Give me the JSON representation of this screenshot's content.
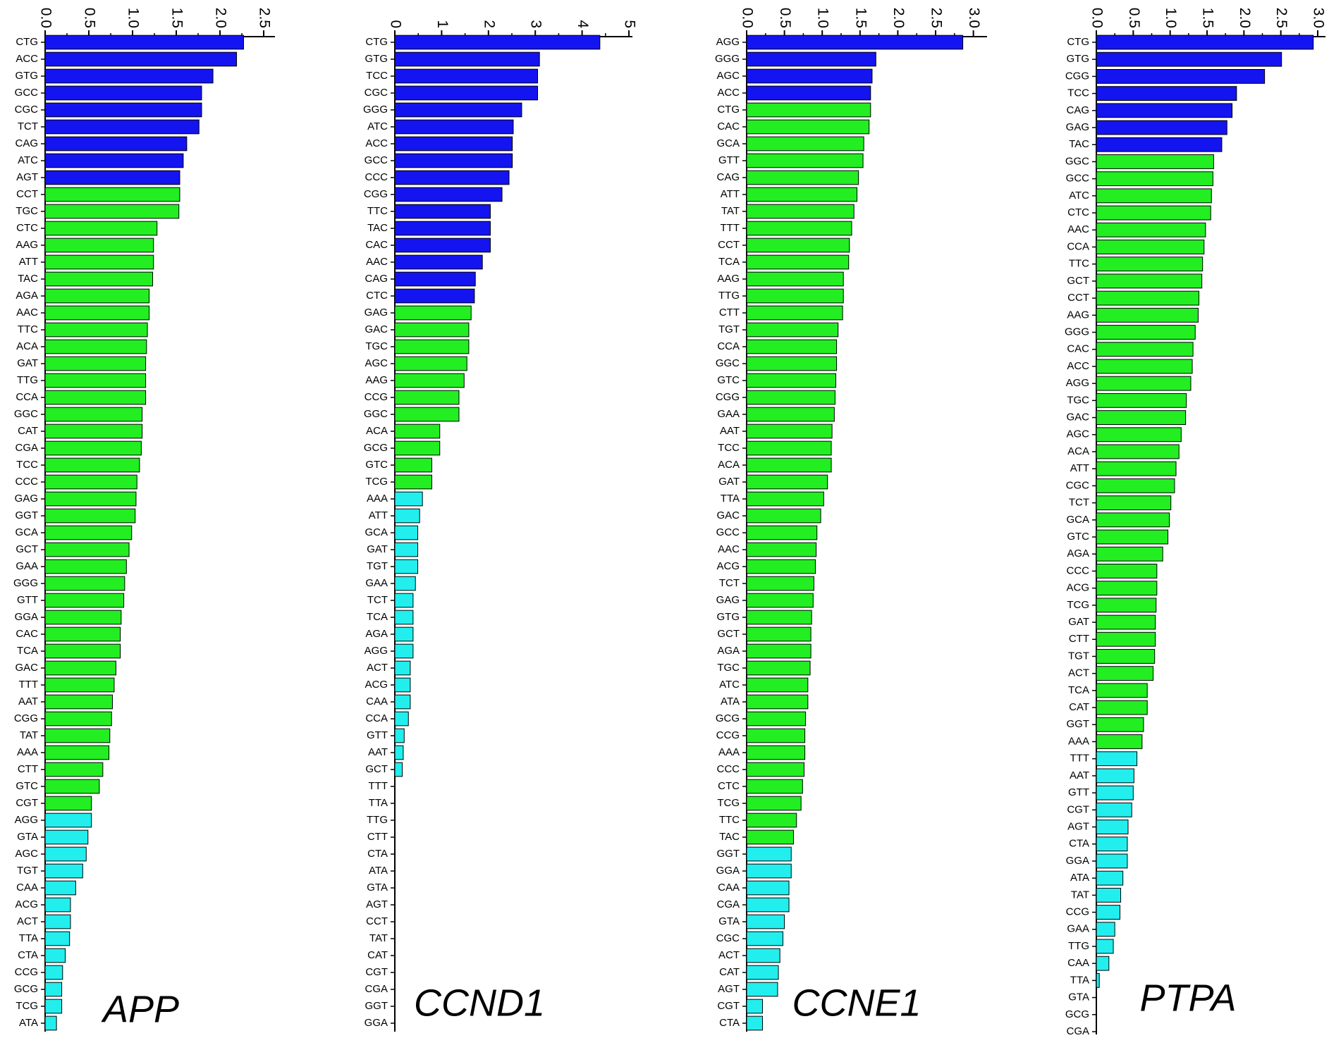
{
  "chart_data": [
    {
      "type": "bar",
      "orientation": "horizontal",
      "title": "APP",
      "xlim": [
        0,
        2.5
      ],
      "ticks": [
        "0.0",
        "0.5",
        "1.0",
        "1.5",
        "2.0",
        "2.5"
      ],
      "categories": [
        "CTG",
        "ACC",
        "GTG",
        "GCC",
        "CGC",
        "TCT",
        "CAG",
        "ATC",
        "AGT",
        "CCT",
        "TGC",
        "CTC",
        "AAG",
        "ATT",
        "TAC",
        "AGA",
        "AAC",
        "TTC",
        "ACA",
        "GAT",
        "TTG",
        "CCA",
        "GGC",
        "CAT",
        "CGA",
        "TCC",
        "CCC",
        "GAG",
        "GGT",
        "GCA",
        "GCT",
        "GAA",
        "GGG",
        "GTT",
        "GGA",
        "CAC",
        "TCA",
        "GAC",
        "TTT",
        "AAT",
        "CGG",
        "TAT",
        "AAA",
        "CTT",
        "GTC",
        "CGT",
        "AGG",
        "GTA",
        "AGC",
        "TGT",
        "CAA",
        "ACG",
        "ACT",
        "TTA",
        "CTA",
        "CCG",
        "GCG",
        "TCG",
        "ATA"
      ],
      "values": [
        2.27,
        2.19,
        1.92,
        1.79,
        1.79,
        1.76,
        1.62,
        1.58,
        1.54,
        1.54,
        1.53,
        1.28,
        1.24,
        1.24,
        1.23,
        1.19,
        1.19,
        1.17,
        1.16,
        1.15,
        1.15,
        1.15,
        1.11,
        1.11,
        1.1,
        1.08,
        1.05,
        1.04,
        1.03,
        0.99,
        0.96,
        0.93,
        0.91,
        0.9,
        0.87,
        0.86,
        0.86,
        0.81,
        0.79,
        0.77,
        0.76,
        0.74,
        0.73,
        0.66,
        0.62,
        0.53,
        0.53,
        0.49,
        0.47,
        0.43,
        0.35,
        0.29,
        0.29,
        0.28,
        0.23,
        0.2,
        0.19,
        0.19,
        0.13
      ],
      "colors": [
        "#1414f0",
        "#1414f0",
        "#1414f0",
        "#1414f0",
        "#1414f0",
        "#1414f0",
        "#1414f0",
        "#1414f0",
        "#1414f0",
        "#22ee22",
        "#22ee22",
        "#22ee22",
        "#22ee22",
        "#22ee22",
        "#22ee22",
        "#22ee22",
        "#22ee22",
        "#22ee22",
        "#22ee22",
        "#22ee22",
        "#22ee22",
        "#22ee22",
        "#22ee22",
        "#22ee22",
        "#22ee22",
        "#22ee22",
        "#22ee22",
        "#22ee22",
        "#22ee22",
        "#22ee22",
        "#22ee22",
        "#22ee22",
        "#22ee22",
        "#22ee22",
        "#22ee22",
        "#22ee22",
        "#22ee22",
        "#22ee22",
        "#22ee22",
        "#22ee22",
        "#22ee22",
        "#22ee22",
        "#22ee22",
        "#22ee22",
        "#22ee22",
        "#22ee22",
        "#22eeee",
        "#22eeee",
        "#22eeee",
        "#22eeee",
        "#22eeee",
        "#22eeee",
        "#22eeee",
        "#22eeee",
        "#22eeee",
        "#22eeee",
        "#22eeee",
        "#22eeee",
        "#22eeee"
      ]
    },
    {
      "type": "bar",
      "orientation": "horizontal",
      "title": "CCND1",
      "xlim": [
        0,
        5
      ],
      "ticks": [
        "0",
        "1",
        "2",
        "3",
        "4",
        "5"
      ],
      "categories": [
        "CTG",
        "GTG",
        "TCC",
        "CGC",
        "GGG",
        "ATC",
        "ACC",
        "GCC",
        "CCC",
        "CGG",
        "TTC",
        "TAC",
        "CAC",
        "AAC",
        "CAG",
        "CTC",
        "GAG",
        "GAC",
        "TGC",
        "AGC",
        "AAG",
        "CCG",
        "GGC",
        "ACA",
        "GCG",
        "GTC",
        "TCG",
        "AAA",
        "ATT",
        "GCA",
        "GAT",
        "TGT",
        "GAA",
        "TCT",
        "TCA",
        "AGA",
        "AGG",
        "ACT",
        "ACG",
        "CAA",
        "CCA",
        "GTT",
        "AAT",
        "GCT",
        "TTT",
        "TTA",
        "TTG",
        "CTT",
        "CTA",
        "ATA",
        "GTA",
        "AGT",
        "CCT",
        "TAT",
        "CAT",
        "CGT",
        "CGA",
        "GGT",
        "GGA"
      ],
      "values": [
        4.38,
        3.09,
        3.05,
        3.05,
        2.71,
        2.53,
        2.51,
        2.51,
        2.44,
        2.29,
        2.04,
        2.04,
        2.04,
        1.87,
        1.72,
        1.7,
        1.63,
        1.58,
        1.58,
        1.54,
        1.48,
        1.37,
        1.37,
        0.96,
        0.96,
        0.79,
        0.79,
        0.59,
        0.53,
        0.49,
        0.49,
        0.49,
        0.44,
        0.39,
        0.39,
        0.39,
        0.39,
        0.33,
        0.33,
        0.33,
        0.29,
        0.2,
        0.18,
        0.16,
        0,
        0,
        0,
        0,
        0,
        0,
        0,
        0,
        0,
        0,
        0,
        0,
        0,
        0,
        0
      ],
      "colors": [
        "#1414f0",
        "#1414f0",
        "#1414f0",
        "#1414f0",
        "#1414f0",
        "#1414f0",
        "#1414f0",
        "#1414f0",
        "#1414f0",
        "#1414f0",
        "#1414f0",
        "#1414f0",
        "#1414f0",
        "#1414f0",
        "#1414f0",
        "#1414f0",
        "#22ee22",
        "#22ee22",
        "#22ee22",
        "#22ee22",
        "#22ee22",
        "#22ee22",
        "#22ee22",
        "#22ee22",
        "#22ee22",
        "#22ee22",
        "#22ee22",
        "#22eeee",
        "#22eeee",
        "#22eeee",
        "#22eeee",
        "#22eeee",
        "#22eeee",
        "#22eeee",
        "#22eeee",
        "#22eeee",
        "#22eeee",
        "#22eeee",
        "#22eeee",
        "#22eeee",
        "#22eeee",
        "#22eeee",
        "#22eeee",
        "#22eeee",
        "#22eeee",
        "#22eeee",
        "#22eeee",
        "#22eeee",
        "#22eeee",
        "#22eeee",
        "#22eeee",
        "#22eeee",
        "#22eeee",
        "#22eeee",
        "#22eeee",
        "#22eeee",
        "#22eeee",
        "#22eeee",
        "#22eeee"
      ]
    },
    {
      "type": "bar",
      "orientation": "horizontal",
      "title": "CCNE1",
      "xlim": [
        0,
        3.0
      ],
      "ticks": [
        "0.0",
        "0.5",
        "1.0",
        "1.5",
        "2.0",
        "2.5",
        "3.0"
      ],
      "categories": [
        "AGG",
        "GGG",
        "AGC",
        "ACC",
        "CTG",
        "CAC",
        "GCA",
        "GTT",
        "CAG",
        "ATT",
        "TAT",
        "TTT",
        "CCT",
        "TCA",
        "AAG",
        "TTG",
        "CTT",
        "TGT",
        "CCA",
        "GGC",
        "GTC",
        "CGG",
        "GAA",
        "AAT",
        "TCC",
        "ACA",
        "GAT",
        "TTA",
        "GAC",
        "GCC",
        "AAC",
        "ACG",
        "TCT",
        "GAG",
        "GTG",
        "GCT",
        "AGA",
        "TGC",
        "ATC",
        "ATA",
        "GCG",
        "CCG",
        "AAA",
        "CCC",
        "CTC",
        "TCG",
        "TTC",
        "TAC",
        "GGT",
        "GGA",
        "CAA",
        "CGA",
        "GTA",
        "CGC",
        "ACT",
        "CAT",
        "AGT",
        "CGT",
        "CTA"
      ],
      "values": [
        2.86,
        1.71,
        1.66,
        1.64,
        1.64,
        1.62,
        1.55,
        1.54,
        1.48,
        1.46,
        1.42,
        1.39,
        1.36,
        1.35,
        1.28,
        1.28,
        1.27,
        1.21,
        1.19,
        1.19,
        1.18,
        1.17,
        1.16,
        1.13,
        1.12,
        1.12,
        1.07,
        1.02,
        0.98,
        0.93,
        0.92,
        0.91,
        0.89,
        0.88,
        0.86,
        0.85,
        0.85,
        0.84,
        0.81,
        0.81,
        0.78,
        0.77,
        0.77,
        0.76,
        0.74,
        0.72,
        0.66,
        0.62,
        0.59,
        0.59,
        0.56,
        0.56,
        0.5,
        0.48,
        0.44,
        0.42,
        0.41,
        0.21,
        0.21
      ],
      "colors": [
        "#1414f0",
        "#1414f0",
        "#1414f0",
        "#1414f0",
        "#22ee22",
        "#22ee22",
        "#22ee22",
        "#22ee22",
        "#22ee22",
        "#22ee22",
        "#22ee22",
        "#22ee22",
        "#22ee22",
        "#22ee22",
        "#22ee22",
        "#22ee22",
        "#22ee22",
        "#22ee22",
        "#22ee22",
        "#22ee22",
        "#22ee22",
        "#22ee22",
        "#22ee22",
        "#22ee22",
        "#22ee22",
        "#22ee22",
        "#22ee22",
        "#22ee22",
        "#22ee22",
        "#22ee22",
        "#22ee22",
        "#22ee22",
        "#22ee22",
        "#22ee22",
        "#22ee22",
        "#22ee22",
        "#22ee22",
        "#22ee22",
        "#22ee22",
        "#22ee22",
        "#22ee22",
        "#22ee22",
        "#22ee22",
        "#22ee22",
        "#22ee22",
        "#22ee22",
        "#22ee22",
        "#22ee22",
        "#22eeee",
        "#22eeee",
        "#22eeee",
        "#22eeee",
        "#22eeee",
        "#22eeee",
        "#22eeee",
        "#22eeee",
        "#22eeee",
        "#22eeee",
        "#22eeee"
      ]
    },
    {
      "type": "bar",
      "orientation": "horizontal",
      "title": "PTPA",
      "xlim": [
        0,
        3.0
      ],
      "ticks": [
        "0.0",
        "0.5",
        "1.0",
        "1.5",
        "2.0",
        "2.5",
        "3.0"
      ],
      "categories": [
        "CTG",
        "GTG",
        "CGG",
        "TCC",
        "CAG",
        "GAG",
        "TAC",
        "GGC",
        "GCC",
        "ATC",
        "CTC",
        "AAC",
        "CCA",
        "TTC",
        "GCT",
        "CCT",
        "AAG",
        "GGG",
        "CAC",
        "ACC",
        "AGG",
        "TGC",
        "GAC",
        "AGC",
        "ACA",
        "ATT",
        "CGC",
        "TCT",
        "GCA",
        "GTC",
        "AGA",
        "CCC",
        "ACG",
        "TCG",
        "GAT",
        "CTT",
        "TGT",
        "ACT",
        "TCA",
        "CAT",
        "GGT",
        "AAA",
        "TTT",
        "AAT",
        "GTT",
        "CGT",
        "AGT",
        "CTA",
        "GGA",
        "ATA",
        "TAT",
        "CCG",
        "GAA",
        "TTG",
        "CAA",
        "TTA",
        "GTA",
        "GCG",
        "CGA"
      ],
      "values": [
        2.94,
        2.51,
        2.28,
        1.9,
        1.84,
        1.77,
        1.7,
        1.59,
        1.58,
        1.56,
        1.55,
        1.48,
        1.46,
        1.44,
        1.43,
        1.39,
        1.38,
        1.34,
        1.31,
        1.3,
        1.28,
        1.22,
        1.21,
        1.15,
        1.12,
        1.08,
        1.06,
        1.01,
        0.99,
        0.97,
        0.9,
        0.82,
        0.82,
        0.81,
        0.8,
        0.8,
        0.79,
        0.77,
        0.69,
        0.69,
        0.64,
        0.62,
        0.55,
        0.51,
        0.5,
        0.48,
        0.43,
        0.42,
        0.42,
        0.36,
        0.33,
        0.32,
        0.25,
        0.23,
        0.17,
        0.04,
        0,
        0,
        0
      ],
      "colors": [
        "#1414f0",
        "#1414f0",
        "#1414f0",
        "#1414f0",
        "#1414f0",
        "#1414f0",
        "#1414f0",
        "#22ee22",
        "#22ee22",
        "#22ee22",
        "#22ee22",
        "#22ee22",
        "#22ee22",
        "#22ee22",
        "#22ee22",
        "#22ee22",
        "#22ee22",
        "#22ee22",
        "#22ee22",
        "#22ee22",
        "#22ee22",
        "#22ee22",
        "#22ee22",
        "#22ee22",
        "#22ee22",
        "#22ee22",
        "#22ee22",
        "#22ee22",
        "#22ee22",
        "#22ee22",
        "#22ee22",
        "#22ee22",
        "#22ee22",
        "#22ee22",
        "#22ee22",
        "#22ee22",
        "#22ee22",
        "#22ee22",
        "#22ee22",
        "#22ee22",
        "#22ee22",
        "#22ee22",
        "#22eeee",
        "#22eeee",
        "#22eeee",
        "#22eeee",
        "#22eeee",
        "#22eeee",
        "#22eeee",
        "#22eeee",
        "#22eeee",
        "#22eeee",
        "#22eeee",
        "#22eeee",
        "#22eeee",
        "#22eeee",
        "#22eeee",
        "#22eeee",
        "#22eeee"
      ]
    }
  ]
}
